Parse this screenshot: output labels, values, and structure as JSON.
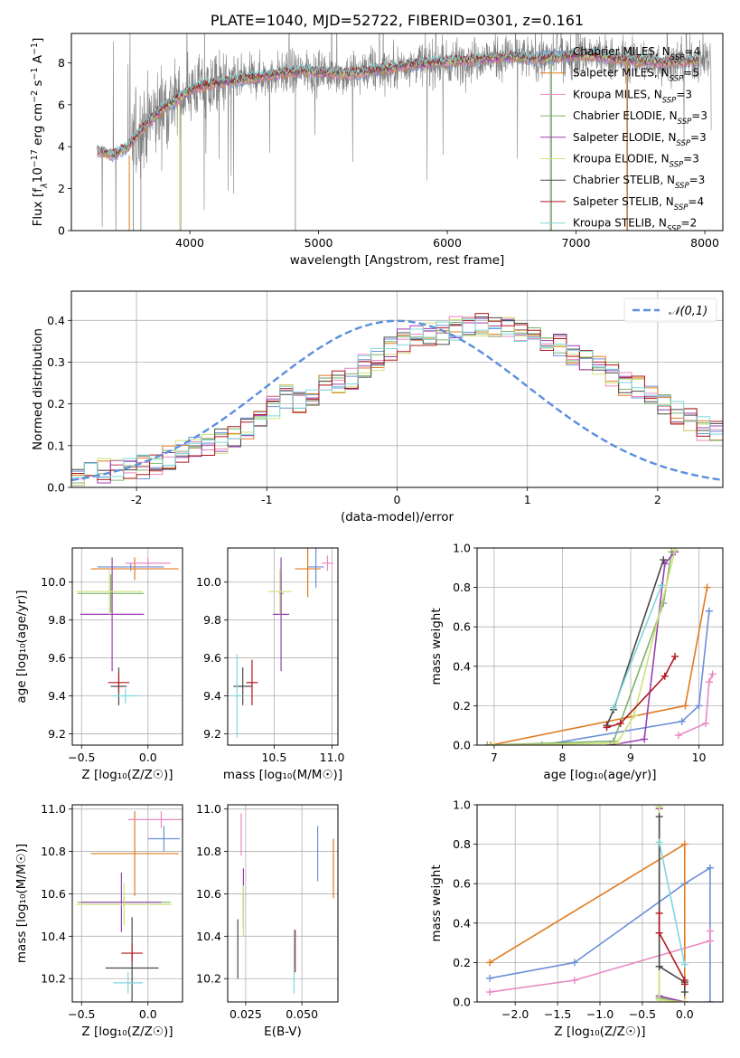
{
  "colors": {
    "chabrier_miles": "#6c8fd8",
    "salpeter_miles": "#e07b20",
    "kroupa_miles": "#e989c3",
    "chabrier_elodie": "#7db36b",
    "salpeter_elodie": "#9c3fb3",
    "kroupa_elodie": "#cfe27a",
    "chabrier_stelib": "#4a4a4a",
    "salpeter_stelib": "#b0181d",
    "kroupa_stelib": "#7fd7dc",
    "data": "#808080",
    "normal": "#5b8ede",
    "grid": "#b0b0b0"
  },
  "chart_data": [
    {
      "type": "line",
      "title": "PLATE=1040, MJD=52722, FIBERID=0301, z=0.161",
      "xlabel": "wavelength [Angstrom, rest frame]",
      "ylabel_parts": [
        "Flux [f",
        "λ",
        "10",
        "−17",
        " erg cm",
        "−2",
        " s",
        "−1",
        " A",
        "−1",
        "]"
      ],
      "xlim": [
        3080,
        8140
      ],
      "ylim": [
        0,
        9.4
      ],
      "xticks": [
        4000,
        5000,
        6000,
        7000,
        8000
      ],
      "yticks": [
        0,
        2,
        4,
        6,
        8
      ],
      "legend_position": "top-right",
      "legend": [
        {
          "name": "Chabrier MILES",
          "n": "4",
          "color_key": "chabrier_miles"
        },
        {
          "name": "Salpeter MILES",
          "n": "5",
          "color_key": "salpeter_miles"
        },
        {
          "name": "Kroupa MILES",
          "n": "3",
          "color_key": "kroupa_miles"
        },
        {
          "name": "Chabrier ELODIE",
          "n": "3",
          "color_key": "chabrier_elodie"
        },
        {
          "name": "Salpeter ELODIE",
          "n": "3",
          "color_key": "salpeter_elodie"
        },
        {
          "name": "Kroupa ELODIE",
          "n": "3",
          "color_key": "kroupa_elodie"
        },
        {
          "name": "Chabrier STELIB",
          "n": "3",
          "color_key": "chabrier_stelib"
        },
        {
          "name": "Salpeter STELIB",
          "n": "4",
          "color_key": "salpeter_stelib"
        },
        {
          "name": "Kroupa STELIB",
          "n": "2",
          "color_key": "kroupa_stelib"
        }
      ],
      "legend_n_prefix": "N",
      "legend_n_sub": "SSP",
      "continuum": {
        "wavelength": [
          3280,
          3400,
          3500,
          3560,
          3620,
          3700,
          3800,
          3900,
          4000,
          4100,
          4300,
          4500,
          4700,
          4900,
          5100,
          5300,
          5500,
          5700,
          5900,
          6100,
          6300,
          6500,
          6700,
          6900,
          7100,
          7300,
          7500,
          7700,
          7900,
          8050
        ],
        "flux": [
          3.8,
          3.6,
          3.9,
          4.3,
          4.8,
          5.3,
          5.9,
          6.2,
          6.7,
          6.9,
          7.1,
          7.3,
          7.5,
          7.6,
          7.5,
          7.5,
          7.7,
          7.9,
          8.0,
          8.1,
          8.2,
          8.3,
          8.2,
          8.3,
          8.4,
          8.2,
          8.1,
          8.0,
          8.1,
          8.2
        ]
      }
    },
    {
      "type": "histogram",
      "xlabel": "(data-model)/error",
      "ylabel": "Normed distribution",
      "xlim": [
        -2.5,
        2.5
      ],
      "ylim": [
        0,
        0.47
      ],
      "xticks": [
        -2,
        -1,
        0,
        1,
        2
      ],
      "yticks": [
        0.0,
        0.1,
        0.2,
        0.3,
        0.4
      ],
      "legend_position": "top-right",
      "legend": [
        {
          "name": "𝒩(0,1)",
          "color_key": "normal"
        }
      ],
      "bin_start": -2.5,
      "bin_width": 0.1,
      "mean_histogram": [
        0.02,
        0.03,
        0.04,
        0.04,
        0.05,
        0.05,
        0.06,
        0.07,
        0.09,
        0.09,
        0.1,
        0.11,
        0.12,
        0.14,
        0.17,
        0.19,
        0.22,
        0.2,
        0.22,
        0.25,
        0.25,
        0.26,
        0.29,
        0.31,
        0.33,
        0.35,
        0.36,
        0.37,
        0.37,
        0.38,
        0.39,
        0.39,
        0.39,
        0.38,
        0.37,
        0.36,
        0.35,
        0.34,
        0.32,
        0.3,
        0.29,
        0.27,
        0.25,
        0.24,
        0.22,
        0.2,
        0.18,
        0.16,
        0.14,
        0.13
      ]
    },
    {
      "type": "scatter",
      "xlabel": "Z [log₁₀(Z/Z☉)]",
      "ylabel": "age  [log₁₀(age/yr)]",
      "xlim": [
        -0.57,
        0.26
      ],
      "ylim": [
        9.14,
        10.18
      ],
      "xticks": [
        -0.5,
        0.0
      ],
      "xtick_labels": [
        "−0.5",
        "0.0"
      ],
      "yticks": [
        9.2,
        9.4,
        9.6,
        9.8,
        10.0
      ],
      "errorbars": [
        {
          "color_key": "chabrier_miles",
          "x": -0.13,
          "y": 10.08,
          "xerr": 0.25,
          "yerr": 0.02
        },
        {
          "color_key": "salpeter_miles",
          "x": -0.1,
          "y": 10.07,
          "xerr": 0.33,
          "yerr": 0.06
        },
        {
          "color_key": "kroupa_miles",
          "x": 0.0,
          "y": 10.1,
          "xerr": 0.17,
          "yerr": 0.03
        },
        {
          "color_key": "chabrier_elodie",
          "x": -0.28,
          "y": 9.94,
          "xerr": 0.25,
          "yerr": 0.1
        },
        {
          "color_key": "salpeter_elodie",
          "x": -0.27,
          "y": 9.83,
          "xerr": 0.24,
          "yerr": 0.3
        },
        {
          "color_key": "kroupa_elodie",
          "x": -0.29,
          "y": 9.95,
          "xerr": 0.25,
          "yerr": 0.12
        },
        {
          "color_key": "chabrier_stelib",
          "x": -0.22,
          "y": 9.45,
          "xerr": 0.06,
          "yerr": 0.1
        },
        {
          "color_key": "salpeter_stelib",
          "x": -0.22,
          "y": 9.47,
          "xerr": 0.08,
          "yerr": 0.05
        },
        {
          "color_key": "kroupa_stelib",
          "x": -0.17,
          "y": 9.4,
          "xerr": 0.1,
          "yerr": 0.04
        }
      ]
    },
    {
      "type": "scatter",
      "xlabel": "mass [log₁₀(M/M☉)]",
      "ylabel": "",
      "xlim": [
        10.1,
        11.05
      ],
      "ylim": [
        9.14,
        10.18
      ],
      "xticks": [
        10.5,
        11.0
      ],
      "xtick_labels": [
        "10.5",
        "11.0"
      ],
      "yticks": [
        9.2,
        9.4,
        9.6,
        9.8,
        10.0
      ],
      "errorbars": [
        {
          "color_key": "chabrier_miles",
          "x": 10.86,
          "y": 10.08,
          "xerr": 0.07,
          "yerr": 0.11
        },
        {
          "color_key": "salpeter_miles",
          "x": 10.79,
          "y": 10.07,
          "xerr": 0.11,
          "yerr": 0.15
        },
        {
          "color_key": "kroupa_miles",
          "x": 10.96,
          "y": 10.1,
          "xerr": 0.05,
          "yerr": 0.04
        },
        {
          "color_key": "chabrier_elodie",
          "x": 10.56,
          "y": 9.94,
          "xerr": 0.02,
          "yerr": 0.1
        },
        {
          "color_key": "salpeter_elodie",
          "x": 10.56,
          "y": 9.83,
          "xerr": 0.07,
          "yerr": 0.3
        },
        {
          "color_key": "kroupa_elodie",
          "x": 10.55,
          "y": 9.95,
          "xerr": 0.1,
          "yerr": 0.12
        },
        {
          "color_key": "chabrier_stelib",
          "x": 10.23,
          "y": 9.45,
          "xerr": 0.08,
          "yerr": 0.1
        },
        {
          "color_key": "salpeter_stelib",
          "x": 10.31,
          "y": 9.47,
          "xerr": 0.05,
          "yerr": 0.12
        },
        {
          "color_key": "kroupa_stelib",
          "x": 10.18,
          "y": 9.4,
          "xerr": 0.05,
          "yerr": 0.22
        }
      ]
    },
    {
      "type": "line",
      "xlabel": "age  [log₁₀(age/yr)]",
      "ylabel": "mass weight",
      "xlim": [
        6.75,
        10.35
      ],
      "ylim": [
        0,
        1.0
      ],
      "xticks": [
        7,
        8,
        9,
        10
      ],
      "yticks": [
        0.0,
        0.2,
        0.4,
        0.6,
        0.8,
        1.0
      ],
      "series": [
        {
          "color_key": "chabrier_miles",
          "x": [
            7.7,
            9.75,
            10.0,
            10.15
          ],
          "y": [
            0.0,
            0.12,
            0.2,
            0.68
          ]
        },
        {
          "color_key": "salpeter_miles",
          "x": [
            6.95,
            9.8,
            10.12
          ],
          "y": [
            0.0,
            0.2,
            0.8
          ]
        },
        {
          "color_key": "kroupa_miles",
          "x": [
            9.7,
            10.1,
            10.15,
            10.2
          ],
          "y": [
            0.05,
            0.11,
            0.32,
            0.36
          ]
        },
        {
          "color_key": "chabrier_elodie",
          "x": [
            6.9,
            8.75,
            9.48,
            9.6
          ],
          "y": [
            0.0,
            0.02,
            0.72,
            0.98
          ]
        },
        {
          "color_key": "salpeter_elodie",
          "x": [
            8.7,
            9.2,
            9.5,
            9.65
          ],
          "y": [
            0.0,
            0.03,
            0.92,
            0.98
          ]
        },
        {
          "color_key": "kroupa_elodie",
          "x": [
            7.0,
            8.8,
            9.05,
            9.65
          ],
          "y": [
            0.0,
            0.01,
            0.15,
            0.99
          ]
        },
        {
          "color_key": "chabrier_stelib",
          "x": [
            8.65,
            8.75,
            9.48
          ],
          "y": [
            0.1,
            0.18,
            0.94
          ]
        },
        {
          "color_key": "salpeter_stelib",
          "x": [
            8.65,
            8.85,
            9.5,
            9.65
          ],
          "y": [
            0.09,
            0.11,
            0.35,
            0.45
          ]
        },
        {
          "color_key": "kroupa_stelib",
          "x": [
            8.75,
            9.45
          ],
          "y": [
            0.19,
            0.81
          ]
        }
      ]
    },
    {
      "type": "scatter",
      "xlabel": "Z [log₁₀(Z/Z☉)]",
      "ylabel": "mass [log₁₀(M/M☉)]",
      "xlim": [
        -0.57,
        0.26
      ],
      "ylim": [
        10.09,
        11.02
      ],
      "xticks": [
        -0.5,
        0.0
      ],
      "xtick_labels": [
        "−0.5",
        "0.0"
      ],
      "yticks": [
        10.2,
        10.4,
        10.6,
        10.8,
        11.0
      ],
      "errorbars": [
        {
          "color_key": "chabrier_miles",
          "x": 0.12,
          "y": 10.86,
          "xerr": 0.12,
          "yerr": 0.06
        },
        {
          "color_key": "salpeter_miles",
          "x": -0.1,
          "y": 10.79,
          "xerr": 0.33,
          "yerr": 0.2
        },
        {
          "color_key": "kroupa_miles",
          "x": 0.1,
          "y": 10.95,
          "xerr": 0.25,
          "yerr": 0.04
        },
        {
          "color_key": "chabrier_elodie",
          "x": -0.18,
          "y": 10.56,
          "xerr": 0.35,
          "yerr": 0.02
        },
        {
          "color_key": "salpeter_elodie",
          "x": -0.2,
          "y": 10.56,
          "xerr": 0.3,
          "yerr": 0.14
        },
        {
          "color_key": "kroupa_elodie",
          "x": -0.18,
          "y": 10.55,
          "xerr": 0.36,
          "yerr": 0.1
        },
        {
          "color_key": "chabrier_stelib",
          "x": -0.12,
          "y": 10.25,
          "xerr": 0.2,
          "yerr": 0.24
        },
        {
          "color_key": "salpeter_stelib",
          "x": -0.12,
          "y": 10.32,
          "xerr": 0.08,
          "yerr": 0.04
        },
        {
          "color_key": "kroupa_stelib",
          "x": -0.15,
          "y": 10.18,
          "xerr": 0.11,
          "yerr": 0.05
        }
      ]
    },
    {
      "type": "scatter",
      "xlabel": "E(B-V)",
      "ylabel": "",
      "xlim": [
        0.017,
        0.066
      ],
      "ylim": [
        10.09,
        11.02
      ],
      "xticks": [
        0.025,
        0.05
      ],
      "xtick_labels": [
        "0.025",
        "0.050"
      ],
      "yticks": [
        10.2,
        10.4,
        10.6,
        10.8,
        11.0
      ],
      "errorbars": [
        {
          "color_key": "chabrier_miles",
          "x": 0.057,
          "y": 10.79,
          "xerr": 0.0,
          "yerr": 0.13
        },
        {
          "color_key": "salpeter_miles",
          "x": 0.064,
          "y": 10.72,
          "xerr": 0.0,
          "yerr": 0.14
        },
        {
          "color_key": "kroupa_miles",
          "x": 0.023,
          "y": 10.88,
          "xerr": 0.0,
          "yerr": 0.1
        },
        {
          "color_key": "chabrier_elodie",
          "x": 0.024,
          "y": 10.56,
          "xerr": 0.0,
          "yerr": 0.04
        },
        {
          "color_key": "salpeter_elodie",
          "x": 0.024,
          "y": 10.58,
          "xerr": 0.0,
          "yerr": 0.14
        },
        {
          "color_key": "kroupa_elodie",
          "x": 0.024,
          "y": 10.52,
          "xerr": 0.0,
          "yerr": 0.12
        },
        {
          "color_key": "chabrier_stelib",
          "x": 0.0215,
          "y": 10.34,
          "xerr": 0.0,
          "yerr": 0.14
        },
        {
          "color_key": "salpeter_stelib",
          "x": 0.047,
          "y": 10.33,
          "xerr": 0.0,
          "yerr": 0.1
        },
        {
          "color_key": "kroupa_stelib",
          "x": 0.0465,
          "y": 10.28,
          "xerr": 0.0,
          "yerr": 0.15
        }
      ]
    },
    {
      "type": "line",
      "xlabel": "Z [log₁₀(Z/Z☉)]",
      "ylabel": "mass weight",
      "xlim": [
        -2.45,
        0.45
      ],
      "ylim": [
        0,
        1.0
      ],
      "xticks": [
        -2.0,
        -1.5,
        -1.0,
        -0.5,
        0.0
      ],
      "xtick_labels": [
        "−2.0",
        "−1.5",
        "−1.0",
        "−0.5",
        "0.0"
      ],
      "yticks": [
        0.0,
        0.2,
        0.4,
        0.6,
        0.8,
        1.0
      ],
      "series": [
        {
          "color_key": "chabrier_miles",
          "x": [
            -2.3,
            -1.3,
            0.0,
            0.3,
            0.3
          ],
          "y": [
            0.12,
            0.2,
            0.6,
            0.68,
            0.0
          ]
        },
        {
          "color_key": "salpeter_miles",
          "x": [
            -2.3,
            0.0,
            0.0
          ],
          "y": [
            0.2,
            0.8,
            0.0
          ]
        },
        {
          "color_key": "kroupa_miles",
          "x": [
            -2.3,
            -1.3,
            0.3,
            0.3
          ],
          "y": [
            0.05,
            0.11,
            0.31,
            0.36
          ]
        },
        {
          "color_key": "chabrier_elodie",
          "x": [
            -0.3,
            -0.3,
            0.0
          ],
          "y": [
            0.98,
            0.02,
            0.0
          ]
        },
        {
          "color_key": "salpeter_elodie",
          "x": [
            -0.3,
            -0.3,
            0.0
          ],
          "y": [
            0.98,
            0.03,
            0.0
          ]
        },
        {
          "color_key": "kroupa_elodie",
          "x": [
            -0.3,
            -0.3,
            0.0
          ],
          "y": [
            0.99,
            0.01,
            0.0
          ]
        },
        {
          "color_key": "chabrier_stelib",
          "x": [
            -0.3,
            -0.3,
            0.0,
            0.0
          ],
          "y": [
            0.94,
            0.18,
            0.1,
            0.05
          ]
        },
        {
          "color_key": "salpeter_stelib",
          "x": [
            -0.3,
            -0.3,
            0.0,
            0.0
          ],
          "y": [
            0.45,
            0.35,
            0.11,
            0.09
          ]
        },
        {
          "color_key": "kroupa_stelib",
          "x": [
            -0.3,
            0.0
          ],
          "y": [
            0.81,
            0.19
          ]
        }
      ]
    }
  ]
}
